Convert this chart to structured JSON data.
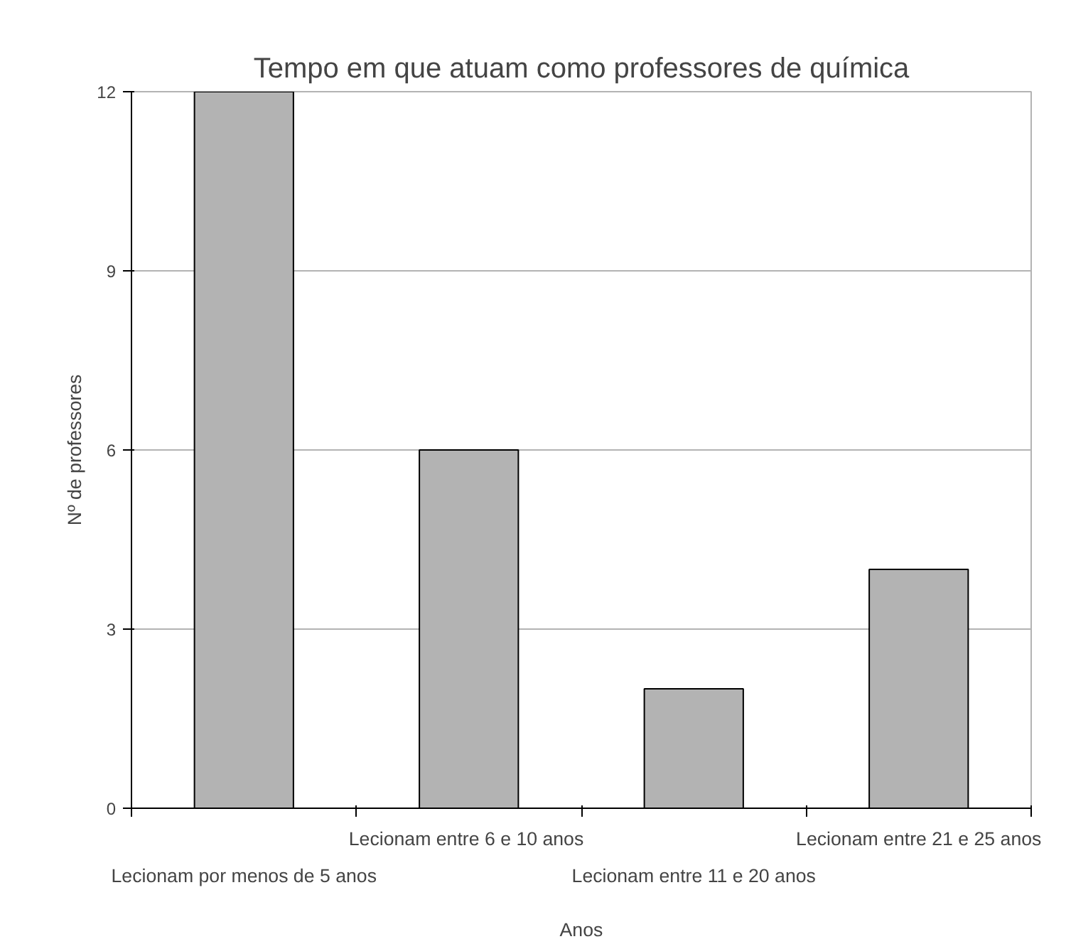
{
  "chart_data": {
    "type": "bar",
    "title": "Tempo em que atuam como professores de química",
    "xlabel": "Anos",
    "ylabel": "Nº de professores",
    "categories": [
      "Lecionam por menos de 5 anos",
      "Lecionam entre  6 e 10 anos",
      "Lecionam entre 11 e 20 anos",
      "Lecionam entre 21 e 25 anos"
    ],
    "values": [
      12,
      6,
      2,
      4
    ],
    "color": "#b3b3b3",
    "ylim": [
      0,
      12
    ],
    "yticks": [
      0,
      3,
      6,
      9,
      12
    ],
    "grid": "y"
  }
}
